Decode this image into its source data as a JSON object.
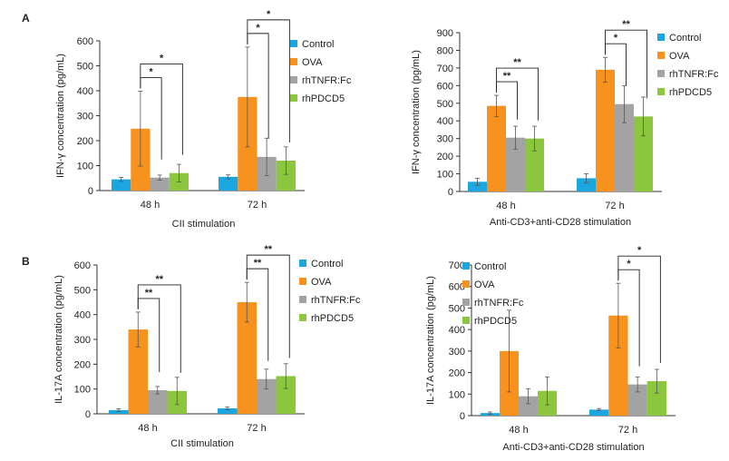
{
  "panel_labels": [
    "A",
    "B"
  ],
  "colors": {
    "Control": "#1ba6e0",
    "OVA": "#f7921e",
    "rhTNFR:Fc": "#a3a3a3",
    "rhPDCD5": "#8cc63e"
  },
  "chart_data": [
    {
      "type": "bar",
      "panel": "A",
      "categories": [
        "48 h",
        "72 h"
      ],
      "ylabel": "IFN-γ concentration (pg/mL)",
      "xlabel": "CII stimulation",
      "ylim": [
        0,
        600
      ],
      "yticks": [
        0,
        100,
        200,
        300,
        400,
        500,
        600
      ],
      "series": [
        {
          "name": "Control",
          "values": [
            45,
            55
          ],
          "errors": [
            8,
            8
          ]
        },
        {
          "name": "OVA",
          "values": [
            248,
            375
          ],
          "errors": [
            150,
            200
          ]
        },
        {
          "name": "rhTNFR:Fc",
          "values": [
            52,
            135
          ],
          "errors": [
            10,
            75
          ]
        },
        {
          "name": "rhPDCD5",
          "values": [
            70,
            120
          ],
          "errors": [
            35,
            55
          ]
        }
      ],
      "significance": [
        {
          "group": 0,
          "from": 1,
          "to": 2,
          "label": "*"
        },
        {
          "group": 0,
          "from": 1,
          "to": 3,
          "label": "*"
        },
        {
          "group": 1,
          "from": 1,
          "to": 2,
          "label": "*"
        },
        {
          "group": 1,
          "from": 1,
          "to": 3,
          "label": "*"
        }
      ]
    },
    {
      "type": "bar",
      "panel": "A",
      "categories": [
        "48 h",
        "72 h"
      ],
      "ylabel": "IFN-γ concentration (pg/mL)",
      "xlabel": "Anti-CD3+anti-CD28 stimulation",
      "ylim": [
        0,
        900
      ],
      "yticks": [
        0,
        100,
        200,
        300,
        400,
        500,
        600,
        700,
        800,
        900
      ],
      "series": [
        {
          "name": "Control",
          "values": [
            55,
            75
          ],
          "errors": [
            20,
            25
          ]
        },
        {
          "name": "OVA",
          "values": [
            485,
            690
          ],
          "errors": [
            60,
            70
          ]
        },
        {
          "name": "rhTNFR:Fc",
          "values": [
            305,
            495
          ],
          "errors": [
            65,
            105
          ]
        },
        {
          "name": "rhPDCD5",
          "values": [
            300,
            425
          ],
          "errors": [
            70,
            110
          ]
        }
      ],
      "significance": [
        {
          "group": 0,
          "from": 1,
          "to": 2,
          "label": "**"
        },
        {
          "group": 0,
          "from": 1,
          "to": 3,
          "label": "**"
        },
        {
          "group": 1,
          "from": 1,
          "to": 2,
          "label": "*"
        },
        {
          "group": 1,
          "from": 1,
          "to": 3,
          "label": "**"
        }
      ]
    },
    {
      "type": "bar",
      "panel": "B",
      "categories": [
        "48 h",
        "72 h"
      ],
      "ylabel": "IL-17A concentration (pg/mL)",
      "xlabel": "CII stimulation",
      "ylim": [
        0,
        600
      ],
      "yticks": [
        0,
        100,
        200,
        300,
        400,
        500,
        600
      ],
      "series": [
        {
          "name": "Control",
          "values": [
            15,
            22
          ],
          "errors": [
            5,
            5
          ]
        },
        {
          "name": "OVA",
          "values": [
            340,
            450
          ],
          "errors": [
            70,
            80
          ]
        },
        {
          "name": "rhTNFR:Fc",
          "values": [
            95,
            140
          ],
          "errors": [
            15,
            40
          ]
        },
        {
          "name": "rhPDCD5",
          "values": [
            92,
            152
          ],
          "errors": [
            55,
            50
          ]
        }
      ],
      "significance": [
        {
          "group": 0,
          "from": 1,
          "to": 2,
          "label": "**"
        },
        {
          "group": 0,
          "from": 1,
          "to": 3,
          "label": "**"
        },
        {
          "group": 1,
          "from": 1,
          "to": 2,
          "label": "**"
        },
        {
          "group": 1,
          "from": 1,
          "to": 3,
          "label": "**"
        }
      ]
    },
    {
      "type": "bar",
      "panel": "B",
      "categories": [
        "48 h",
        "72 h"
      ],
      "ylabel": "IL-17A concentration (pg/mL)",
      "xlabel": "Anti-CD3+anti-CD28 stimulation",
      "ylim": [
        0,
        700
      ],
      "yticks": [
        0,
        100,
        200,
        300,
        400,
        500,
        600,
        700
      ],
      "series": [
        {
          "name": "Control",
          "values": [
            12,
            28
          ],
          "errors": [
            5,
            5
          ]
        },
        {
          "name": "OVA",
          "values": [
            300,
            465
          ],
          "errors": [
            190,
            150
          ]
        },
        {
          "name": "rhTNFR:Fc",
          "values": [
            90,
            145
          ],
          "errors": [
            35,
            35
          ]
        },
        {
          "name": "rhPDCD5",
          "values": [
            115,
            160
          ],
          "errors": [
            65,
            55
          ]
        }
      ],
      "significance": [
        {
          "group": 1,
          "from": 1,
          "to": 2,
          "label": "*"
        },
        {
          "group": 1,
          "from": 1,
          "to": 3,
          "label": "*"
        }
      ]
    }
  ]
}
